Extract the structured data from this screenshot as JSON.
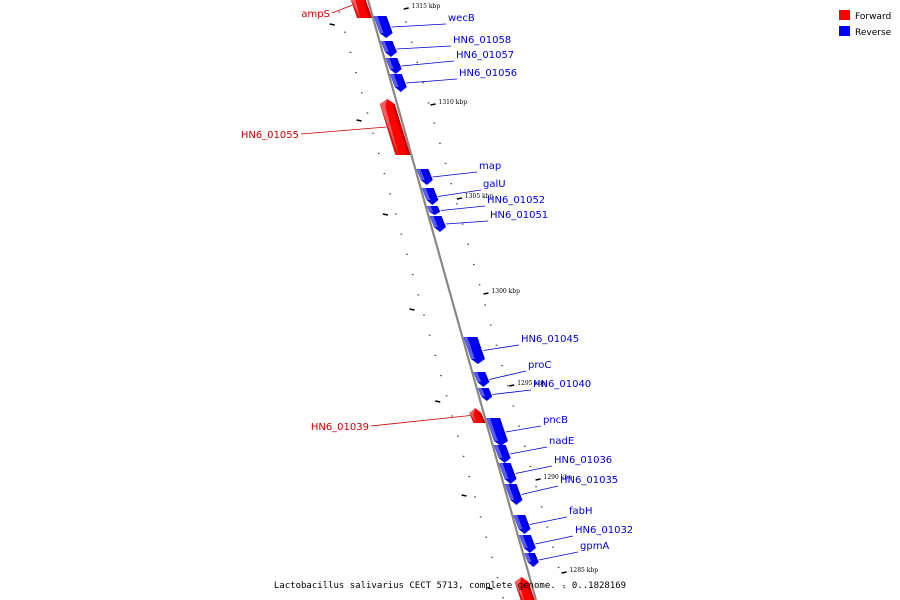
{
  "caption": "Lactobacillus salivarius CECT 5713, complete genome. - 0..1828169",
  "legend": [
    {
      "key": "forward",
      "label": "Forward",
      "color": "#ff0000"
    },
    {
      "key": "reverse",
      "label": "Reverse",
      "color": "#0000ff"
    }
  ],
  "colors": {
    "forward": "#ff0000",
    "forward_label": "#cc0000",
    "reverse": "#0000ff",
    "reverse_label": "#0000cc",
    "backbone": "#888888"
  },
  "ticks": [
    {
      "label": "1315 kbp"
    },
    {
      "label": "1310 kbp"
    },
    {
      "label": "1305 kbp"
    },
    {
      "label": "1300 kbp"
    },
    {
      "label": "1295 kbp"
    },
    {
      "label": "1290 kbp"
    },
    {
      "label": "1285 kbp"
    }
  ],
  "genes": [
    {
      "name": "ampS",
      "strand": "forward"
    },
    {
      "name": "wecB",
      "strand": "reverse"
    },
    {
      "name": "HN6_01058",
      "strand": "reverse"
    },
    {
      "name": "HN6_01057",
      "strand": "reverse"
    },
    {
      "name": "HN6_01056",
      "strand": "reverse"
    },
    {
      "name": "HN6_01055",
      "strand": "forward"
    },
    {
      "name": "map",
      "strand": "reverse"
    },
    {
      "name": "galU",
      "strand": "reverse"
    },
    {
      "name": "HN6_01052",
      "strand": "reverse"
    },
    {
      "name": "HN6_01051",
      "strand": "reverse"
    },
    {
      "name": "HN6_01045",
      "strand": "reverse"
    },
    {
      "name": "proC",
      "strand": "reverse"
    },
    {
      "name": "HN6_01040",
      "strand": "reverse"
    },
    {
      "name": "HN6_01039",
      "strand": "forward"
    },
    {
      "name": "pncB",
      "strand": "reverse"
    },
    {
      "name": "nadE",
      "strand": "reverse"
    },
    {
      "name": "HN6_01036",
      "strand": "reverse"
    },
    {
      "name": "HN6_01035",
      "strand": "reverse"
    },
    {
      "name": "fabH",
      "strand": "reverse"
    },
    {
      "name": "HN6_01032",
      "strand": "reverse"
    },
    {
      "name": "gpmA",
      "strand": "reverse"
    },
    {
      "name": "",
      "strand": "forward"
    }
  ]
}
